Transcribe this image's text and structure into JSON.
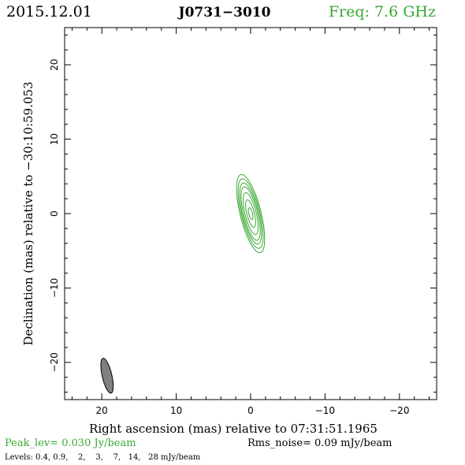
{
  "header": {
    "date": "2015.12.01",
    "source": "J0731−3010",
    "frequency": "Freq: 7.6 GHz"
  },
  "colors": {
    "frequency": "#3aa832",
    "contour": "#3aa832",
    "beam_fill": "#808080",
    "text": "#000000",
    "frame": "#000000"
  },
  "chart_data": {
    "type": "contour",
    "xlabel": "Right ascension (mas) relative to 07:31:51.1965",
    "ylabel": "Declination (mas) relative to −30:10:59.053",
    "xlim": [
      25,
      -25
    ],
    "ylim": [
      -25,
      25
    ],
    "x_ticks": [
      20,
      10,
      0,
      -10,
      -20
    ],
    "y_ticks": [
      20,
      10,
      0,
      -10,
      -20
    ],
    "x_tick_labels": [
      "20",
      "10",
      "0",
      "−10",
      "−20"
    ],
    "y_tick_labels": [
      "20",
      "10",
      "0",
      "−10",
      "−20"
    ],
    "minor_tick_step": 2,
    "center": [
      0,
      0
    ],
    "contour_orientation_deg": 14,
    "contours": [
      {
        "level": 0.4,
        "semi_major_mas": 5.4,
        "semi_minor_mas": 1.4
      },
      {
        "level": 0.9,
        "semi_major_mas": 4.8,
        "semi_minor_mas": 1.25
      },
      {
        "level": 2,
        "semi_major_mas": 4.2,
        "semi_minor_mas": 1.1
      },
      {
        "level": 3,
        "semi_major_mas": 3.7,
        "semi_minor_mas": 0.95
      },
      {
        "level": 7,
        "semi_major_mas": 2.9,
        "semi_minor_mas": 0.75
      },
      {
        "level": 14,
        "semi_major_mas": 1.9,
        "semi_minor_mas": 0.5
      },
      {
        "level": 28,
        "semi_major_mas": 0.8,
        "semi_minor_mas": 0.25
      }
    ],
    "beam": {
      "center": [
        19.3,
        -21.8
      ],
      "major_mas": 4.8,
      "minor_mas": 1.3,
      "position_angle_deg": 13
    },
    "peak_label": "Peak_lev=  0.030 Jy/beam",
    "rms_label": "Rms_noise= 0.09 mJy/beam",
    "levels_label": "Levels: 0.4, 0.9,    2,    3,    7,   14,   28 mJy/beam"
  }
}
